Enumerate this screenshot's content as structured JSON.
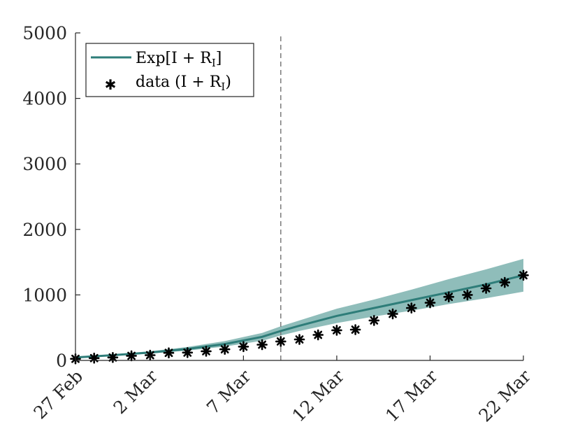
{
  "chart_data": {
    "type": "line",
    "title": "",
    "xlabel": "",
    "ylabel": "",
    "ylim": [
      0,
      5000
    ],
    "xlim": [
      0,
      24
    ],
    "yticks": [
      0,
      1000,
      2000,
      3000,
      4000,
      5000
    ],
    "ytick_labels": [
      "0",
      "1000",
      "2000",
      "3000",
      "4000",
      "5000"
    ],
    "xticks": [
      0,
      4,
      9,
      14,
      19,
      24
    ],
    "xtick_labels": [
      "27 Feb",
      "2 Mar",
      "7 Mar",
      "12 Mar",
      "17 Mar",
      "22 Mar"
    ],
    "vline_x": 11,
    "series": [
      {
        "name": "Exp[I + R_I]",
        "kind": "line_with_band",
        "color": "#2e7d79",
        "band_color": "#6aa7a3",
        "x": [
          0,
          2,
          4,
          6,
          8,
          10,
          11,
          12,
          14,
          16,
          18,
          20,
          22,
          24
        ],
        "values": [
          45,
          80,
          120,
          175,
          250,
          360,
          450,
          530,
          680,
          800,
          920,
          1040,
          1160,
          1300
        ],
        "lower": [
          38,
          70,
          105,
          150,
          210,
          300,
          380,
          450,
          570,
          670,
          760,
          860,
          950,
          1050
        ],
        "upper": [
          55,
          92,
          140,
          205,
          295,
          420,
          520,
          610,
          790,
          930,
          1080,
          1240,
          1390,
          1550
        ]
      },
      {
        "name": "data (I + R_I)",
        "kind": "markers",
        "color": "#000000",
        "x": [
          0,
          1,
          2,
          3,
          4,
          5,
          6,
          7,
          8,
          9,
          10,
          11,
          12,
          13,
          14,
          15,
          16,
          17,
          18,
          19,
          20,
          21,
          22,
          23,
          24
        ],
        "values": [
          25,
          35,
          45,
          70,
          80,
          115,
          120,
          140,
          170,
          210,
          240,
          290,
          320,
          390,
          460,
          470,
          610,
          710,
          800,
          880,
          970,
          1000,
          1100,
          1190,
          1300
        ]
      }
    ],
    "legend": {
      "position": "top-left",
      "entries": [
        {
          "label_text": "Exp[I + R",
          "label_sub": "I",
          "label_end": "]"
        },
        {
          "label_text": "data (I + R",
          "label_sub": "I",
          "label_end": ")"
        }
      ]
    }
  }
}
